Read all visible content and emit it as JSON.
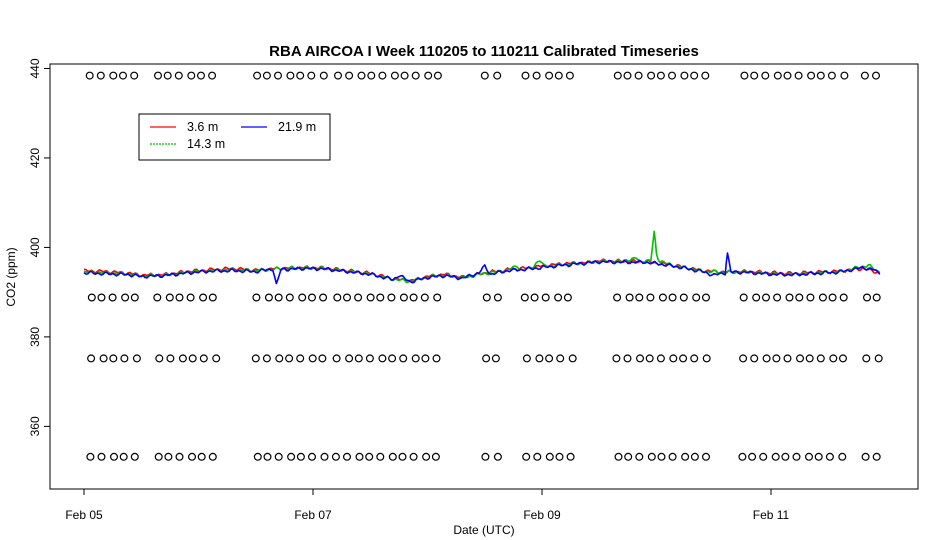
{
  "chart_data": {
    "type": "line",
    "title": "RBA AIRCOA I  Week 110205 to 110211  Calibrated Timeseries",
    "xlabel": "Date (UTC)",
    "ylabel": "CO2 (ppm)",
    "x_ticks": [
      {
        "day": 5,
        "label": "Feb 05"
      },
      {
        "day": 7,
        "label": "Feb 07"
      },
      {
        "day": 9,
        "label": "Feb 09"
      },
      {
        "day": 11,
        "label": "Feb 11"
      }
    ],
    "y_ticks": [
      360,
      380,
      400,
      420,
      440
    ],
    "xlim": [
      "2011-02-04T21:00",
      "2011-02-12T06:00"
    ],
    "ylim": [
      346,
      441
    ],
    "legend": {
      "placement": "top-left",
      "entries": [
        {
          "name": "3.6 m",
          "color": "#ff0000"
        },
        {
          "name": "14.3 m",
          "color": "#00c000"
        },
        {
          "name": "21.9 m",
          "color": "#0000ff"
        }
      ]
    },
    "series": [
      {
        "name": "3.6 m",
        "color": "#ff0000",
        "points": [
          [
            5.0,
            394.8
          ],
          [
            5.2,
            394.6
          ],
          [
            5.4,
            394.2
          ],
          [
            5.5,
            393.8
          ],
          [
            5.7,
            393.9
          ],
          [
            5.9,
            394.6
          ],
          [
            6.1,
            395.0
          ],
          [
            6.3,
            395.3
          ],
          [
            6.5,
            394.9
          ],
          [
            6.7,
            395.3
          ],
          [
            6.9,
            395.5
          ],
          [
            7.1,
            395.4
          ],
          [
            7.3,
            394.8
          ],
          [
            7.5,
            394.2
          ],
          [
            7.7,
            393.0
          ],
          [
            7.85,
            392.5
          ],
          [
            8.0,
            393.5
          ],
          [
            8.15,
            394.0
          ],
          [
            8.3,
            393.3
          ],
          [
            8.5,
            394.3
          ],
          [
            8.7,
            395.0
          ],
          [
            8.9,
            395.5
          ],
          [
            9.05,
            396.0
          ],
          [
            9.2,
            396.4
          ],
          [
            9.4,
            396.6
          ],
          [
            9.5,
            397.0
          ],
          [
            9.7,
            396.9
          ],
          [
            9.9,
            396.8
          ],
          [
            10.0,
            396.5
          ],
          [
            10.2,
            395.8
          ],
          [
            10.4,
            394.8
          ],
          [
            10.6,
            394.5
          ],
          [
            10.8,
            394.6
          ],
          [
            11.0,
            394.3
          ],
          [
            11.2,
            394.2
          ],
          [
            11.4,
            394.5
          ],
          [
            11.6,
            394.7
          ],
          [
            11.8,
            395.3
          ],
          [
            11.95,
            394.3
          ]
        ]
      },
      {
        "name": "14.3 m",
        "color": "#00c000",
        "points": [
          [
            5.0,
            394.5
          ],
          [
            5.2,
            394.3
          ],
          [
            5.4,
            394.0
          ],
          [
            5.5,
            393.6
          ],
          [
            5.7,
            393.8
          ],
          [
            5.9,
            394.4
          ],
          [
            6.1,
            394.8
          ],
          [
            6.3,
            395.0
          ],
          [
            6.5,
            394.8
          ],
          [
            6.7,
            395.2
          ],
          [
            6.9,
            395.4
          ],
          [
            7.1,
            395.3
          ],
          [
            7.3,
            394.7
          ],
          [
            7.5,
            394.1
          ],
          [
            7.7,
            392.9
          ],
          [
            7.85,
            392.4
          ],
          [
            8.0,
            393.4
          ],
          [
            8.15,
            393.8
          ],
          [
            8.3,
            393.2
          ],
          [
            8.5,
            394.2
          ],
          [
            8.7,
            394.9
          ],
          [
            8.78,
            396.0
          ],
          [
            8.82,
            395.0
          ],
          [
            8.9,
            395.3
          ],
          [
            8.98,
            397.0
          ],
          [
            9.02,
            395.8
          ],
          [
            9.2,
            396.2
          ],
          [
            9.4,
            396.5
          ],
          [
            9.5,
            396.9
          ],
          [
            9.7,
            396.8
          ],
          [
            9.82,
            397.8
          ],
          [
            9.86,
            396.8
          ],
          [
            9.95,
            397.0
          ],
          [
            9.98,
            403.5
          ],
          [
            10.0,
            398.5
          ],
          [
            10.03,
            396.8
          ],
          [
            10.2,
            395.7
          ],
          [
            10.4,
            394.7
          ],
          [
            10.6,
            394.4
          ],
          [
            10.8,
            394.5
          ],
          [
            11.0,
            394.1
          ],
          [
            11.2,
            394.0
          ],
          [
            11.4,
            394.3
          ],
          [
            11.6,
            394.6
          ],
          [
            11.85,
            396.0
          ],
          [
            11.95,
            394.4
          ]
        ]
      },
      {
        "name": "21.9 m",
        "color": "#0000ff",
        "points": [
          [
            5.0,
            394.3
          ],
          [
            5.2,
            394.1
          ],
          [
            5.4,
            393.9
          ],
          [
            5.5,
            393.5
          ],
          [
            5.7,
            393.7
          ],
          [
            5.9,
            394.3
          ],
          [
            6.1,
            394.7
          ],
          [
            6.3,
            394.8
          ],
          [
            6.5,
            394.6
          ],
          [
            6.65,
            395.2
          ],
          [
            6.68,
            391.5
          ],
          [
            6.72,
            395.0
          ],
          [
            6.9,
            395.3
          ],
          [
            7.1,
            395.2
          ],
          [
            7.3,
            394.6
          ],
          [
            7.5,
            394.0
          ],
          [
            7.7,
            392.8
          ],
          [
            7.75,
            393.8
          ],
          [
            7.85,
            392.3
          ],
          [
            8.0,
            393.3
          ],
          [
            8.15,
            393.7
          ],
          [
            8.3,
            393.1
          ],
          [
            8.45,
            394.3
          ],
          [
            8.5,
            395.8
          ],
          [
            8.55,
            394.0
          ],
          [
            8.7,
            394.8
          ],
          [
            8.9,
            395.2
          ],
          [
            9.1,
            395.8
          ],
          [
            9.3,
            396.3
          ],
          [
            9.5,
            396.8
          ],
          [
            9.7,
            396.7
          ],
          [
            9.9,
            396.7
          ],
          [
            10.0,
            396.4
          ],
          [
            10.2,
            395.6
          ],
          [
            10.4,
            394.6
          ],
          [
            10.5,
            393.8
          ],
          [
            10.6,
            394.3
          ],
          [
            10.62,
            398.8
          ],
          [
            10.65,
            394.5
          ],
          [
            10.8,
            394.4
          ],
          [
            11.0,
            394.0
          ],
          [
            11.2,
            393.9
          ],
          [
            11.4,
            394.2
          ],
          [
            11.6,
            394.5
          ],
          [
            11.8,
            395.5
          ],
          [
            11.9,
            395.0
          ],
          [
            11.95,
            394.0
          ]
        ]
      }
    ]
  }
}
